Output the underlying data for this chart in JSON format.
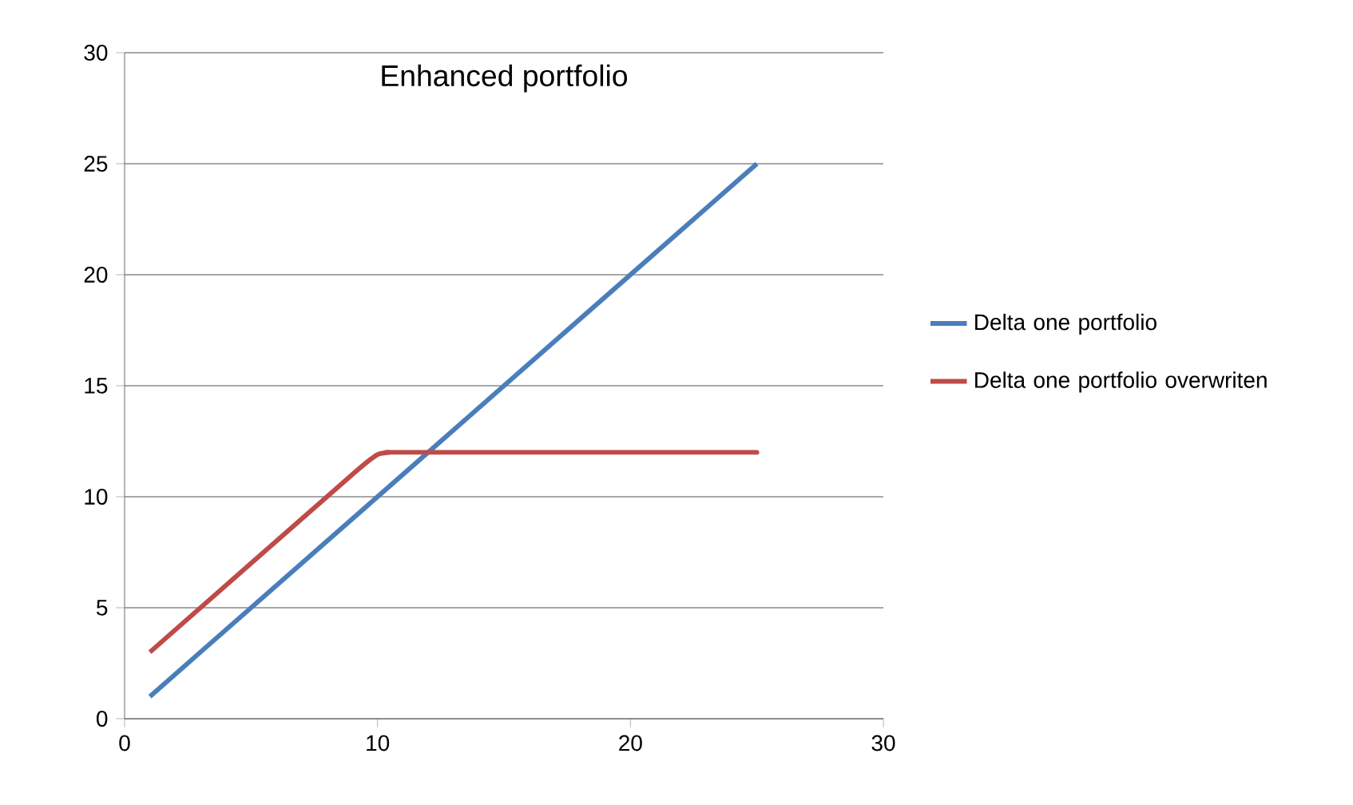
{
  "chart_data": {
    "type": "line",
    "title": "Enhanced portfolio",
    "series": [
      {
        "name": "Delta one portfolio",
        "color": "#4a7ebb",
        "x": [
          1,
          25
        ],
        "values": [
          1,
          25
        ]
      },
      {
        "name": "Delta one portfolio overwriten",
        "color": "#be4b48",
        "x": [
          1,
          9,
          10,
          10.5,
          11,
          25
        ],
        "values": [
          3,
          11,
          11.9,
          12,
          12,
          12
        ]
      }
    ],
    "xlim": [
      0,
      30
    ],
    "xticks": [
      0,
      10,
      20,
      30
    ],
    "ylim": [
      0,
      30
    ],
    "yticks": [
      0,
      5,
      10,
      15,
      20,
      25,
      30
    ],
    "grid": "y",
    "legend": "right",
    "line_style": "solid"
  }
}
